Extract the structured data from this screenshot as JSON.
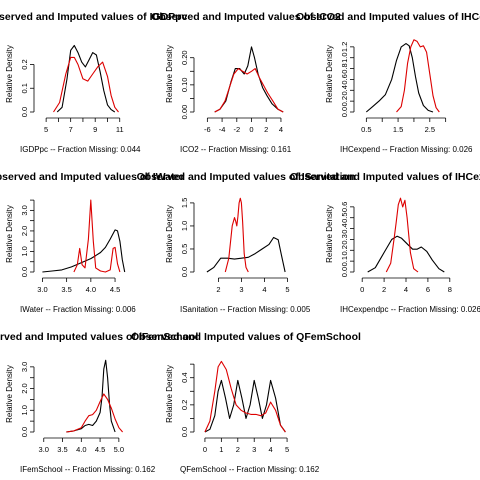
{
  "colors": {
    "observed": "#000000",
    "imputed": "#dd0000",
    "axis": "#000000"
  },
  "chart_data": [
    {
      "type": "line",
      "title": "Observed and Imputed values of IGDPpc",
      "xlabel": "IGDPpc  --  Fraction Missing: 0.044",
      "ylabel": "Relative Density",
      "xlim": [
        4.5,
        12
      ],
      "ylim": [
        0,
        0.32
      ],
      "xticks": [
        5,
        6,
        7,
        8,
        9,
        10,
        11
      ],
      "xtick_labels": [
        "5",
        "",
        "7",
        "",
        "9",
        "",
        "11"
      ],
      "yticks": [
        0.0,
        0.1,
        0.2
      ],
      "ytick_labels": [
        "0.0",
        "0.1",
        "0.2"
      ],
      "series": [
        {
          "role": "observed",
          "x": [
            5.9,
            6.3,
            6.7,
            7.0,
            7.3,
            7.6,
            7.9,
            8.2,
            8.5,
            8.8,
            9.1,
            9.4,
            9.7,
            10.0,
            10.3,
            10.6
          ],
          "y": [
            0.0,
            0.02,
            0.14,
            0.26,
            0.28,
            0.25,
            0.21,
            0.19,
            0.22,
            0.25,
            0.24,
            0.17,
            0.09,
            0.03,
            0.01,
            0.0
          ]
        },
        {
          "role": "imputed",
          "x": [
            5.6,
            6.1,
            6.6,
            7.0,
            7.3,
            7.6,
            8.0,
            8.4,
            8.8,
            9.2,
            9.6,
            10.0,
            10.3,
            10.6,
            10.9
          ],
          "y": [
            0.0,
            0.04,
            0.16,
            0.23,
            0.23,
            0.2,
            0.14,
            0.13,
            0.16,
            0.19,
            0.21,
            0.15,
            0.07,
            0.02,
            0.0
          ]
        }
      ]
    },
    {
      "type": "line",
      "title": "Observed and Imputed values of ICO2",
      "xlabel": "ICO2  --  Fraction Missing: 0.161",
      "ylabel": "Relative Density",
      "xlim": [
        -7,
        5.5
      ],
      "ylim": [
        0,
        0.28
      ],
      "xticks": [
        -6,
        -4,
        -2,
        0,
        2,
        4
      ],
      "xtick_labels": [
        "-6",
        "-4",
        "-2",
        "0",
        "2",
        "4"
      ],
      "yticks": [
        0.0,
        0.05,
        0.1,
        0.15,
        0.2
      ],
      "ytick_labels": [
        "0.00",
        "",
        "0.10",
        "",
        "0.20"
      ],
      "series": [
        {
          "role": "observed",
          "x": [
            -5.0,
            -4.3,
            -3.5,
            -2.8,
            -2.2,
            -1.6,
            -1.0,
            -0.5,
            0.0,
            0.4,
            0.9,
            1.5,
            2.1,
            2.8,
            3.6,
            4.3
          ],
          "y": [
            0.0,
            0.01,
            0.04,
            0.11,
            0.16,
            0.16,
            0.14,
            0.17,
            0.24,
            0.2,
            0.14,
            0.09,
            0.06,
            0.03,
            0.01,
            0.0
          ]
        },
        {
          "role": "imputed",
          "x": [
            -5.0,
            -4.3,
            -3.6,
            -3.0,
            -2.4,
            -1.8,
            -1.2,
            -0.6,
            0.0,
            0.5,
            1.0,
            1.6,
            2.2,
            2.9,
            3.6,
            4.3
          ],
          "y": [
            0.0,
            0.01,
            0.04,
            0.09,
            0.14,
            0.16,
            0.15,
            0.14,
            0.15,
            0.16,
            0.13,
            0.1,
            0.07,
            0.04,
            0.01,
            0.0
          ]
        }
      ]
    },
    {
      "type": "line",
      "title": "Observed and Imputed values of IHCexpend",
      "xlabel": "IHCexpend  --  Fraction Missing: 0.026",
      "ylabel": "Relative Density",
      "xlim": [
        0.3,
        3.2
      ],
      "ylim": [
        0,
        1.4
      ],
      "xticks": [
        0.5,
        1.0,
        1.5,
        2.0,
        2.5,
        3.0
      ],
      "xtick_labels": [
        "0.5",
        "",
        "1.5",
        "",
        "2.5",
        ""
      ],
      "yticks": [
        0.0,
        0.2,
        0.4,
        0.6,
        0.8,
        1.0,
        1.2
      ],
      "ytick_labels": [
        "0.0",
        "0.2",
        "0.4",
        "0.6",
        "0.8",
        "1.0",
        "1.2"
      ],
      "series": [
        {
          "role": "observed",
          "x": [
            0.5,
            0.7,
            0.9,
            1.1,
            1.3,
            1.45,
            1.6,
            1.75,
            1.85,
            1.95,
            2.05,
            2.15,
            2.3,
            2.45,
            2.6
          ],
          "y": [
            0.0,
            0.1,
            0.2,
            0.32,
            0.6,
            0.95,
            1.2,
            1.26,
            1.22,
            1.0,
            0.65,
            0.35,
            0.12,
            0.03,
            0.0
          ]
        },
        {
          "role": "imputed",
          "x": [
            1.45,
            1.6,
            1.7,
            1.8,
            1.9,
            2.0,
            2.1,
            2.2,
            2.3,
            2.4,
            2.5,
            2.6,
            2.7,
            2.8
          ],
          "y": [
            0.0,
            0.1,
            0.4,
            0.9,
            1.2,
            1.33,
            1.3,
            1.2,
            1.22,
            1.1,
            0.7,
            0.3,
            0.08,
            0.0
          ]
        }
      ]
    },
    {
      "type": "line",
      "title": "Observed and Imputed values of IWater",
      "xlabel": "IWater  --  Fraction Missing: 0.006",
      "ylabel": "Relative Density",
      "xlim": [
        2.95,
        4.85
      ],
      "ylim": [
        0,
        3.7
      ],
      "xticks": [
        3.0,
        3.5,
        4.0,
        4.5
      ],
      "xtick_labels": [
        "3.0",
        "3.5",
        "4.0",
        "4.5"
      ],
      "yticks": [
        0,
        0.5,
        1,
        1.5,
        2,
        2.5,
        3,
        3.5
      ],
      "ytick_labels": [
        "0.0",
        "",
        "1.0",
        "",
        "2.0",
        "",
        "3.0",
        ""
      ],
      "series": [
        {
          "role": "observed",
          "x": [
            3.0,
            3.2,
            3.4,
            3.6,
            3.8,
            4.0,
            4.1,
            4.2,
            4.3,
            4.4,
            4.5,
            4.55,
            4.6,
            4.65,
            4.7
          ],
          "y": [
            0.0,
            0.05,
            0.1,
            0.25,
            0.45,
            0.65,
            0.8,
            0.95,
            1.2,
            1.6,
            2.05,
            2.0,
            1.5,
            0.6,
            0.0
          ]
        },
        {
          "role": "imputed",
          "x": [
            3.65,
            3.72,
            3.77,
            3.82,
            3.88,
            3.95,
            4.0,
            4.05,
            4.1,
            4.2,
            4.3,
            4.4,
            4.46,
            4.5,
            4.55,
            4.6
          ],
          "y": [
            0.0,
            0.35,
            1.15,
            0.35,
            0.2,
            1.6,
            3.5,
            1.5,
            0.2,
            0.05,
            0.0,
            0.1,
            1.15,
            1.2,
            0.4,
            0.0
          ]
        }
      ]
    },
    {
      "type": "line",
      "title": "Observed and Imputed values of ISanitation",
      "xlabel": "ISanitation  --  Fraction Missing: 0.005",
      "ylabel": "Relative Density",
      "xlim": [
        1.2,
        5.2
      ],
      "ylim": [
        0,
        1.65
      ],
      "xticks": [
        2,
        3,
        4,
        5
      ],
      "xtick_labels": [
        "2",
        "3",
        "4",
        "5"
      ],
      "yticks": [
        0.0,
        0.5,
        1.0,
        1.5
      ],
      "ytick_labels": [
        "0.0",
        "0.5",
        "1.0",
        "1.5"
      ],
      "series": [
        {
          "role": "observed",
          "x": [
            1.5,
            1.8,
            2.1,
            2.4,
            2.7,
            3.0,
            3.3,
            3.6,
            3.9,
            4.2,
            4.4,
            4.6,
            4.75,
            4.9
          ],
          "y": [
            0.0,
            0.1,
            0.3,
            0.3,
            0.28,
            0.3,
            0.32,
            0.4,
            0.5,
            0.6,
            0.75,
            0.7,
            0.35,
            0.0
          ]
        },
        {
          "role": "imputed",
          "x": [
            2.3,
            2.45,
            2.6,
            2.7,
            2.75,
            2.8,
            2.85,
            2.9,
            2.95,
            3.0,
            3.05,
            3.12,
            3.2,
            3.3
          ],
          "y": [
            0.0,
            0.3,
            1.0,
            1.18,
            1.1,
            1.0,
            1.2,
            1.5,
            1.6,
            1.5,
            1.1,
            0.4,
            0.1,
            0.0
          ]
        }
      ]
    },
    {
      "type": "line",
      "title": "Observed and Imputed values of IHCexpendpc",
      "xlabel": "IHCexpendpc  --  Fraction Missing: 0.026",
      "ylabel": "Relative Density",
      "xlim": [
        -0.2,
        8.2
      ],
      "ylim": [
        0,
        0.7
      ],
      "xticks": [
        0,
        2,
        4,
        6,
        8
      ],
      "xtick_labels": [
        "0",
        "2",
        "4",
        "6",
        "8"
      ],
      "yticks": [
        0.0,
        0.1,
        0.2,
        0.3,
        0.4,
        0.5,
        0.6
      ],
      "ytick_labels": [
        "0.0",
        "0.1",
        "0.2",
        "0.3",
        "0.4",
        "0.5",
        "0.6"
      ],
      "series": [
        {
          "role": "observed",
          "x": [
            0.5,
            1.2,
            2.0,
            2.7,
            3.2,
            3.6,
            4.1,
            4.6,
            5.0,
            5.4,
            5.9,
            6.4,
            7.0,
            7.5
          ],
          "y": [
            0.0,
            0.04,
            0.18,
            0.3,
            0.33,
            0.31,
            0.26,
            0.21,
            0.21,
            0.23,
            0.19,
            0.11,
            0.03,
            0.0
          ]
        },
        {
          "role": "imputed",
          "x": [
            2.2,
            2.6,
            2.9,
            3.1,
            3.3,
            3.5,
            3.7,
            3.9,
            4.1,
            4.4,
            4.7,
            5.1
          ],
          "y": [
            0.0,
            0.08,
            0.3,
            0.45,
            0.62,
            0.68,
            0.6,
            0.66,
            0.5,
            0.18,
            0.03,
            0.0
          ]
        }
      ]
    },
    {
      "type": "line",
      "title": "Observed and Imputed values of IFemSchool",
      "xlabel": "IFemSchool  --  Fraction Missing: 0.162",
      "ylabel": "Relative Density",
      "xlim": [
        2.9,
        5.35
      ],
      "ylim": [
        0,
        3.5
      ],
      "xticks": [
        3.0,
        3.5,
        4.0,
        4.5,
        5.0
      ],
      "xtick_labels": [
        "3.0",
        "3.5",
        "4.0",
        "4.5",
        "5.0"
      ],
      "yticks": [
        0,
        0.5,
        1,
        1.5,
        2,
        2.5,
        3
      ],
      "ytick_labels": [
        "0.0",
        "",
        "1.0",
        "",
        "2.0",
        "",
        "3.0"
      ],
      "series": [
        {
          "role": "observed",
          "x": [
            3.6,
            3.8,
            4.0,
            4.1,
            4.2,
            4.3,
            4.4,
            4.5,
            4.55,
            4.6,
            4.65,
            4.7,
            4.75,
            4.8,
            4.9
          ],
          "y": [
            0.0,
            0.05,
            0.15,
            0.3,
            0.35,
            0.3,
            0.5,
            0.9,
            1.6,
            2.9,
            3.3,
            2.5,
            1.3,
            0.5,
            0.0
          ]
        },
        {
          "role": "imputed",
          "x": [
            3.6,
            3.8,
            4.0,
            4.1,
            4.2,
            4.3,
            4.4,
            4.5,
            4.6,
            4.7,
            4.8,
            4.9,
            5.0,
            5.1
          ],
          "y": [
            0.0,
            0.05,
            0.2,
            0.5,
            0.75,
            0.8,
            1.0,
            1.4,
            1.75,
            1.5,
            1.1,
            0.6,
            0.2,
            0.0
          ]
        }
      ]
    },
    {
      "type": "line",
      "title": "Observed and Imputed values of QFemSchool",
      "xlabel": "QFemSchool  --  Fraction Missing: 0.162",
      "ylabel": "Relative Density",
      "xlim": [
        -0.3,
        5.3
      ],
      "ylim": [
        0,
        0.56
      ],
      "xticks": [
        0,
        1,
        2,
        3,
        4,
        5
      ],
      "xtick_labels": [
        "0",
        "1",
        "2",
        "3",
        "4",
        "5"
      ],
      "yticks": [
        0.0,
        0.1,
        0.2,
        0.3,
        0.4,
        0.5
      ],
      "ytick_labels": [
        "0.0",
        "",
        "0.2",
        "",
        "0.4",
        ""
      ],
      "series": [
        {
          "role": "observed",
          "x": [
            0.0,
            0.3,
            0.6,
            0.8,
            1.0,
            1.25,
            1.5,
            1.75,
            2.0,
            2.25,
            2.5,
            2.75,
            3.0,
            3.25,
            3.5,
            3.75,
            4.0,
            4.3,
            4.6,
            4.9
          ],
          "y": [
            0.0,
            0.02,
            0.12,
            0.3,
            0.38,
            0.25,
            0.1,
            0.2,
            0.38,
            0.25,
            0.1,
            0.2,
            0.38,
            0.25,
            0.1,
            0.2,
            0.38,
            0.25,
            0.05,
            0.0
          ]
        },
        {
          "role": "imputed",
          "x": [
            0.0,
            0.3,
            0.6,
            0.8,
            1.0,
            1.3,
            1.6,
            1.9,
            2.2,
            2.5,
            2.8,
            3.1,
            3.4,
            3.7,
            4.0,
            4.3,
            4.6,
            4.9
          ],
          "y": [
            0.0,
            0.08,
            0.3,
            0.48,
            0.52,
            0.46,
            0.32,
            0.2,
            0.16,
            0.14,
            0.13,
            0.13,
            0.12,
            0.14,
            0.22,
            0.16,
            0.05,
            0.0
          ]
        }
      ]
    }
  ]
}
